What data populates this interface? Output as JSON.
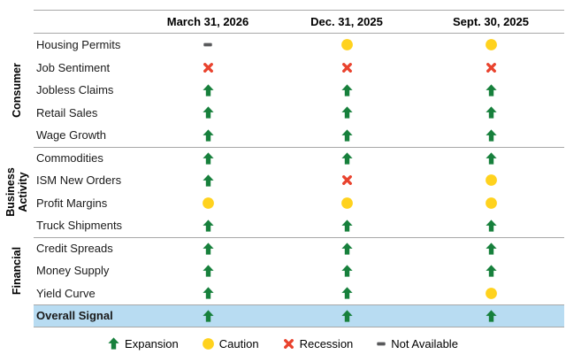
{
  "chart_data": {
    "type": "table",
    "title": "",
    "columns": [
      "March 31, 2026",
      "Dec. 31, 2025",
      "Sept. 30, 2025"
    ],
    "groups": [
      {
        "label": "Consumer",
        "rows": [
          {
            "label": "Housing Permits",
            "signals": [
              "not_available",
              "caution",
              "caution"
            ]
          },
          {
            "label": "Job Sentiment",
            "signals": [
              "recession",
              "recession",
              "recession"
            ]
          },
          {
            "label": "Jobless Claims",
            "signals": [
              "expansion",
              "expansion",
              "expansion"
            ]
          },
          {
            "label": "Retail Sales",
            "signals": [
              "expansion",
              "expansion",
              "expansion"
            ]
          },
          {
            "label": "Wage Growth",
            "signals": [
              "expansion",
              "expansion",
              "expansion"
            ]
          }
        ]
      },
      {
        "label": "Business Activity",
        "rows": [
          {
            "label": "Commodities",
            "signals": [
              "expansion",
              "expansion",
              "expansion"
            ]
          },
          {
            "label": "ISM New Orders",
            "signals": [
              "expansion",
              "recession",
              "caution"
            ]
          },
          {
            "label": "Profit Margins",
            "signals": [
              "caution",
              "caution",
              "caution"
            ]
          },
          {
            "label": "Truck Shipments",
            "signals": [
              "expansion",
              "expansion",
              "expansion"
            ]
          }
        ]
      },
      {
        "label": "Financial",
        "rows": [
          {
            "label": "Credit Spreads",
            "signals": [
              "expansion",
              "expansion",
              "expansion"
            ]
          },
          {
            "label": "Money Supply",
            "signals": [
              "expansion",
              "expansion",
              "expansion"
            ]
          },
          {
            "label": "Yield Curve",
            "signals": [
              "expansion",
              "expansion",
              "caution"
            ]
          }
        ]
      }
    ],
    "overall_row": {
      "label": "Overall Signal",
      "signals": [
        "expansion",
        "expansion",
        "expansion"
      ]
    },
    "signals": {
      "expansion": {
        "label": "Expansion",
        "icon": "up-arrow-icon",
        "color": "#17803c"
      },
      "caution": {
        "label": "Caution",
        "icon": "circle-icon",
        "color": "#ffd21e"
      },
      "recession": {
        "label": "Recession",
        "icon": "x-mark-icon",
        "color": "#e9432e"
      },
      "not_available": {
        "label": "Not Available",
        "icon": "dash-icon",
        "color": "#58595b"
      }
    },
    "legend_order": [
      "expansion",
      "caution",
      "recession",
      "not_available"
    ],
    "colors": {
      "rule": "#a8a8a8",
      "highlight_row": "#b8dcf2",
      "text": "#000000"
    }
  }
}
